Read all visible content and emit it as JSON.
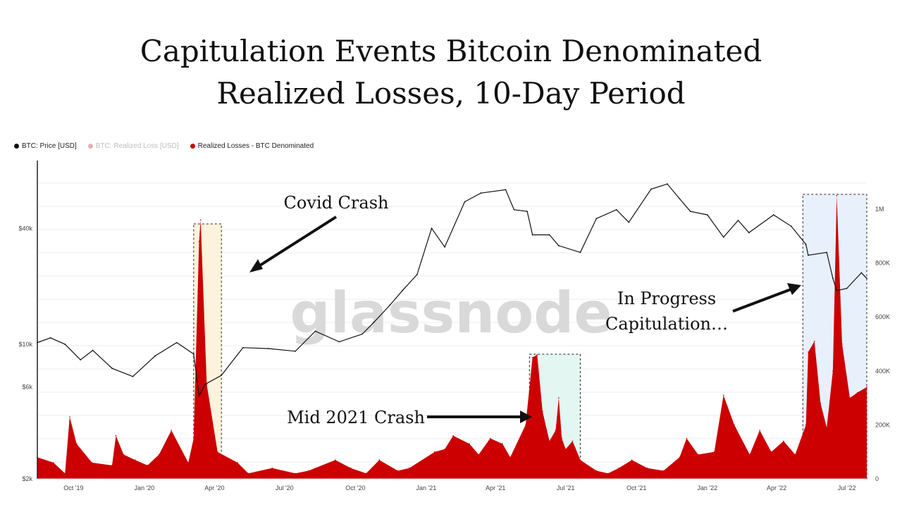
{
  "title_line1": "Capitulation Events Bitcoin Denominated",
  "title_line2": "Realized Losses, 10-Day Period",
  "legend": [
    {
      "label": "BTC: Price [USD]",
      "color": "#111111",
      "faded": false
    },
    {
      "label": "BTC: Realized Loss [USD]",
      "color": "#cc0000",
      "faded": true
    },
    {
      "label": "Realized Losses - BTC Denominated",
      "color": "#cc0000",
      "faded": false
    }
  ],
  "watermark": "glassnode",
  "annotations": {
    "covid": "Covid Crash",
    "mid2021": "Mid 2021 Crash",
    "progress1": "In Progress",
    "progress2": "Capitulation…"
  },
  "colors": {
    "price": "#111111",
    "losses": "#cc0000",
    "losses_highlight": "#a8120d",
    "covid_box": "#fdf3dc",
    "mid2021_box": "#e3f6f1",
    "progress_box": "#e8f0fc"
  },
  "chart_data": {
    "type": "line",
    "x_range": [
      "2019-08-15",
      "2022-07-27"
    ],
    "x_ticks": [
      "Oct '19",
      "Jan '20",
      "Apr '20",
      "Jul '20",
      "Oct '20",
      "Jan '21",
      "Apr '21",
      "Jul '21",
      "Oct '21",
      "Jan '22",
      "Apr '22",
      "Jul '22"
    ],
    "y_left": {
      "scale": "log",
      "ticks": [
        "$2k",
        "$6k",
        "$10k",
        "$40k"
      ],
      "tick_values": [
        2000,
        6000,
        10000,
        40000
      ]
    },
    "y_right": {
      "scale": "linear",
      "ticks": [
        "0",
        "200K",
        "400K",
        "600K",
        "800K",
        "1M"
      ],
      "tick_values": [
        0,
        200000,
        400000,
        600000,
        800000,
        1000000
      ]
    },
    "series": [
      {
        "name": "BTC: Price [USD]",
        "axis": "left",
        "x": [
          "2019-08-15",
          "2019-09-01",
          "2019-09-20",
          "2019-10-10",
          "2019-10-26",
          "2019-11-20",
          "2019-12-17",
          "2020-01-15",
          "2020-02-12",
          "2020-03-05",
          "2020-03-12",
          "2020-03-20",
          "2020-04-10",
          "2020-05-08",
          "2020-06-10",
          "2020-07-15",
          "2020-08-10",
          "2020-09-10",
          "2020-10-10",
          "2020-10-25",
          "2020-11-15",
          "2020-12-01",
          "2020-12-20",
          "2021-01-08",
          "2021-01-25",
          "2021-02-20",
          "2021-03-13",
          "2021-04-14",
          "2021-04-25",
          "2021-05-12",
          "2021-05-19",
          "2021-06-10",
          "2021-06-22",
          "2021-07-20",
          "2021-08-10",
          "2021-09-05",
          "2021-09-21",
          "2021-10-20",
          "2021-11-10",
          "2021-11-26",
          "2021-12-10",
          "2022-01-01",
          "2022-01-22",
          "2022-02-10",
          "2022-02-24",
          "2022-03-28",
          "2022-04-20",
          "2022-05-09",
          "2022-05-12",
          "2022-06-05",
          "2022-06-13",
          "2022-06-18",
          "2022-07-01",
          "2022-07-20",
          "2022-07-27"
        ],
        "values": [
          10200,
          10800,
          10000,
          8300,
          9300,
          7500,
          6800,
          8700,
          10200,
          8900,
          5400,
          6200,
          6900,
          9600,
          9500,
          9200,
          11700,
          10300,
          11300,
          13000,
          16000,
          19000,
          23000,
          40000,
          32000,
          55000,
          61000,
          63500,
          50000,
          49000,
          37000,
          37000,
          32500,
          30000,
          45000,
          50000,
          43000,
          64000,
          68000,
          57000,
          49000,
          47000,
          36000,
          44000,
          38000,
          47000,
          41000,
          33000,
          29000,
          30000,
          22000,
          19000,
          19500,
          23500,
          22000
        ]
      },
      {
        "name": "Realized Losses - BTC Denominated",
        "axis": "right",
        "x": [
          "2019-08-15",
          "2019-09-05",
          "2019-09-20",
          "2019-09-26",
          "2019-10-05",
          "2019-10-25",
          "2019-11-20",
          "2019-11-25",
          "2019-12-05",
          "2019-12-20",
          "2020-01-05",
          "2020-01-20",
          "2020-02-05",
          "2020-02-27",
          "2020-03-05",
          "2020-03-12",
          "2020-03-14",
          "2020-03-22",
          "2020-04-05",
          "2020-05-01",
          "2020-05-15",
          "2020-06-15",
          "2020-07-15",
          "2020-08-01",
          "2020-09-05",
          "2020-09-25",
          "2020-10-15",
          "2020-11-01",
          "2020-11-25",
          "2020-12-10",
          "2021-01-12",
          "2021-01-25",
          "2021-02-05",
          "2021-02-26",
          "2021-03-10",
          "2021-03-25",
          "2021-04-10",
          "2021-04-20",
          "2021-05-10",
          "2021-05-19",
          "2021-05-25",
          "2021-06-01",
          "2021-06-10",
          "2021-06-18",
          "2021-06-22",
          "2021-06-26",
          "2021-07-01",
          "2021-07-10",
          "2021-07-20",
          "2021-08-10",
          "2021-08-25",
          "2021-09-08",
          "2021-09-25",
          "2021-10-15",
          "2021-11-05",
          "2021-11-26",
          "2021-12-05",
          "2021-12-20",
          "2022-01-10",
          "2022-01-22",
          "2022-02-05",
          "2022-02-25",
          "2022-03-10",
          "2022-03-25",
          "2022-04-10",
          "2022-04-25",
          "2022-05-09",
          "2022-05-12",
          "2022-05-20",
          "2022-05-28",
          "2022-06-05",
          "2022-06-13",
          "2022-06-18",
          "2022-06-25",
          "2022-07-05",
          "2022-07-15",
          "2022-07-27"
        ],
        "values": [
          80000,
          60000,
          20000,
          230000,
          130000,
          60000,
          50000,
          160000,
          90000,
          70000,
          50000,
          90000,
          180000,
          60000,
          150000,
          880000,
          960000,
          350000,
          100000,
          60000,
          20000,
          40000,
          20000,
          30000,
          70000,
          40000,
          20000,
          70000,
          30000,
          40000,
          100000,
          110000,
          160000,
          130000,
          90000,
          150000,
          130000,
          80000,
          200000,
          450000,
          460000,
          250000,
          140000,
          180000,
          300000,
          150000,
          110000,
          140000,
          70000,
          30000,
          20000,
          40000,
          70000,
          40000,
          30000,
          80000,
          150000,
          90000,
          100000,
          310000,
          200000,
          90000,
          180000,
          100000,
          140000,
          90000,
          200000,
          470000,
          510000,
          280000,
          190000,
          400000,
          1050000,
          500000,
          300000,
          320000,
          340000
        ]
      }
    ],
    "highlight_periods": [
      {
        "label": "Covid Crash",
        "start": "2020-03-05",
        "end": "2020-04-10"
      },
      {
        "label": "Mid 2021 Crash",
        "start": "2021-05-15",
        "end": "2021-07-20"
      },
      {
        "label": "In Progress Capitulation…",
        "start": "2022-05-05",
        "end": "2022-07-27"
      }
    ]
  }
}
